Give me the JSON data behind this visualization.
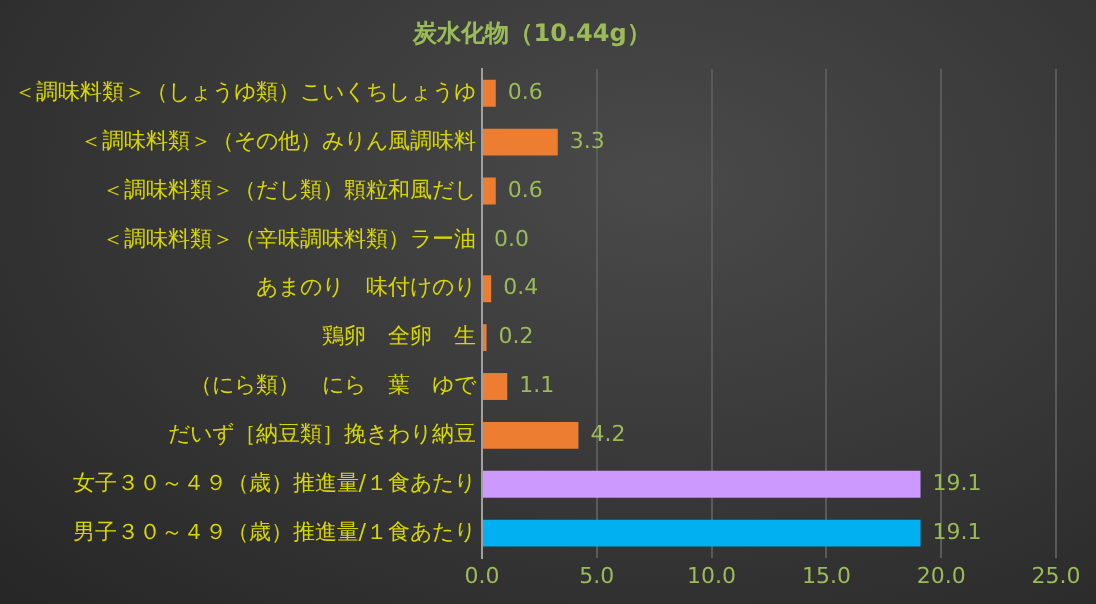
{
  "chart_data": {
    "type": "bar",
    "orientation": "horizontal",
    "title": "炭水化物（10.44g）",
    "categories": [
      "＜調味料類＞（しょうゆ類）こいくちしょうゆ",
      "＜調味料類＞（その他）みりん風調味料",
      "＜調味料類＞（だし類）顆粒和風だし",
      "＜調味料類＞（辛味調味料類）ラー油",
      "あまのり　味付けのり",
      "鶏卵　全卵　生",
      "（にら類）　にら　葉　ゆで",
      "だいず［納豆類］挽きわり納豆",
      "女子３０～４９（歳）推進量/１食あたり",
      "男子３０～４９（歳）推進量/１食あたり"
    ],
    "values": [
      0.6,
      3.3,
      0.6,
      0,
      0.4,
      0.2,
      1.1,
      4.2,
      19.1,
      19.1
    ],
    "colors": [
      "#ed7d31",
      "#ed7d31",
      "#ed7d31",
      "#ed7d31",
      "#ed7d31",
      "#ed7d31",
      "#ed7d31",
      "#ed7d31",
      "#cc99ff",
      "#00b0f0"
    ],
    "value_labels": [
      "0.6",
      "3.3",
      "0.6",
      "0.0",
      "0.4",
      "0.2",
      "1.1",
      "4.2",
      "19.1",
      "19.1"
    ],
    "xlim": [
      0,
      25
    ],
    "xticks": [
      {
        "value": 0,
        "label": "0.0"
      },
      {
        "value": 5,
        "label": "5.0"
      },
      {
        "value": 10,
        "label": "10.0"
      },
      {
        "value": 15,
        "label": "15.0"
      },
      {
        "value": 20,
        "label": "20.0"
      },
      {
        "value": 25,
        "label": "25.0"
      }
    ],
    "grid": "x",
    "legend": false
  }
}
